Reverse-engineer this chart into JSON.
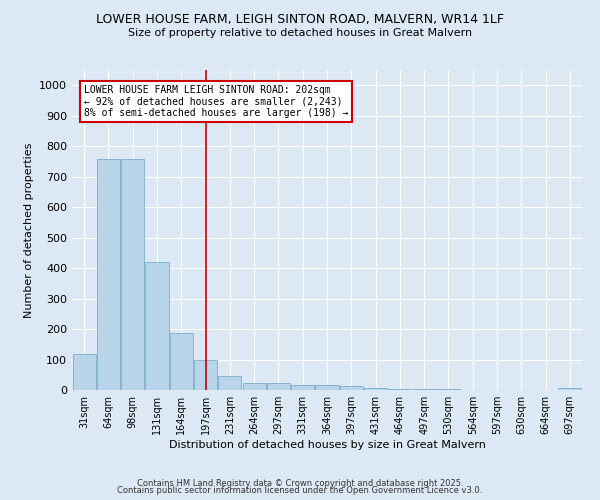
{
  "title1": "LOWER HOUSE FARM, LEIGH SINTON ROAD, MALVERN, WR14 1LF",
  "title2": "Size of property relative to detached houses in Great Malvern",
  "xlabel": "Distribution of detached houses by size in Great Malvern",
  "ylabel": "Number of detached properties",
  "categories": [
    "31sqm",
    "64sqm",
    "98sqm",
    "131sqm",
    "164sqm",
    "197sqm",
    "231sqm",
    "264sqm",
    "297sqm",
    "331sqm",
    "364sqm",
    "397sqm",
    "431sqm",
    "464sqm",
    "497sqm",
    "530sqm",
    "564sqm",
    "597sqm",
    "630sqm",
    "664sqm",
    "697sqm"
  ],
  "values": [
    117,
    757,
    757,
    420,
    188,
    97,
    46,
    22,
    22,
    18,
    15,
    14,
    6,
    3,
    3,
    2,
    1,
    1,
    0,
    0,
    8
  ],
  "bar_color": "#b8d4e8",
  "bar_edge_color": "#7aaccc",
  "highlight_index": 5,
  "highlight_line_color": "#cc0000",
  "annotation_text": "LOWER HOUSE FARM LEIGH SINTON ROAD: 202sqm\n← 92% of detached houses are smaller (2,243)\n8% of semi-detached houses are larger (198) →",
  "annotation_box_color": "#ffffff",
  "annotation_box_edge_color": "#cc0000",
  "ylim": [
    0,
    1050
  ],
  "yticks": [
    0,
    100,
    200,
    300,
    400,
    500,
    600,
    700,
    800,
    900,
    1000
  ],
  "background_color": "#dde8f5",
  "footer1": "Contains HM Land Registry data © Crown copyright and database right 2025.",
  "footer2": "Contains public sector information licensed under the Open Government Licence v3.0."
}
